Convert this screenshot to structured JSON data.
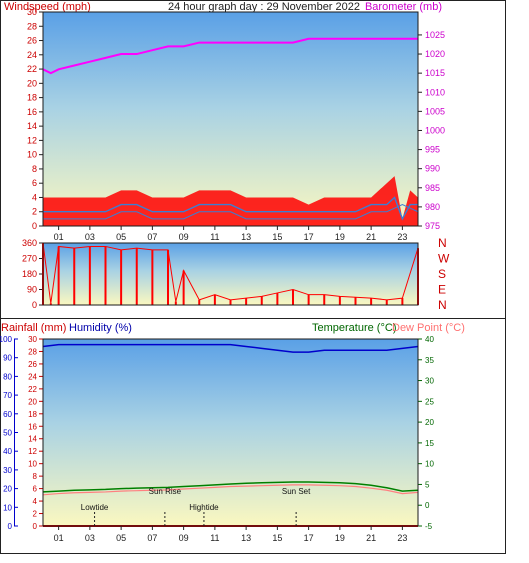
{
  "title": "24 hour graph day : 29 November 2022",
  "colors": {
    "wind": "#ff0000",
    "gust_fill": "#ff0000",
    "avg_wind": "#3a7fd5",
    "barometer": "#ff00ff",
    "direction": "#ff0000",
    "humidity": "#0000cc",
    "temperature": "#008000",
    "dewpoint": "#ff8080",
    "rain": "#cc0000",
    "rain_axis": "#cc0000",
    "humidity_axis": "#0000cc",
    "temp_axis": "#006600",
    "baro_axis": "#cc00cc"
  },
  "chart_data": [
    {
      "type": "line",
      "title": "",
      "ylabel": "Windspeed (mph)",
      "y2label": "Barometer (mb)",
      "ylim": [
        0,
        30
      ],
      "y_ticks": [
        0,
        2,
        4,
        6,
        8,
        10,
        12,
        14,
        16,
        18,
        20,
        22,
        24,
        26,
        28,
        30
      ],
      "y_tick_labels": [
        "0",
        "2",
        "4",
        "6",
        "8",
        "10",
        "12",
        "14",
        "16",
        "18",
        "20",
        "22",
        "24",
        "26",
        "28",
        "30"
      ],
      "y_tick_labels_mph_scale": [
        "0",
        "2",
        "4",
        "6",
        "8",
        "10",
        "12",
        "14",
        "16",
        "18",
        "20",
        "22",
        "24",
        "26",
        "28",
        "30"
      ],
      "y2lim": [
        975,
        1031
      ],
      "y2_ticks": [
        975,
        980,
        985,
        990,
        995,
        1000,
        1005,
        1010,
        1015,
        1020,
        1025
      ],
      "x_tick_labels": [
        "01",
        "03",
        "05",
        "07",
        "09",
        "11",
        "13",
        "15",
        "17",
        "19",
        "21",
        "23"
      ],
      "x_ticks_hour": [
        1,
        3,
        5,
        7,
        9,
        11,
        13,
        15,
        17,
        19,
        21,
        23
      ],
      "xlim": [
        0,
        24
      ],
      "series": [
        {
          "x": [
            0,
            1,
            2,
            3,
            4,
            5,
            6,
            7,
            8,
            9,
            10,
            11,
            12,
            13,
            14,
            15,
            16,
            17,
            18,
            19,
            20,
            21,
            22,
            22.5,
            23,
            23.5,
            24
          ],
          "values": [
            4,
            4,
            4,
            4,
            4,
            5,
            5,
            4,
            4,
            4,
            5,
            5,
            5,
            4,
            4,
            4,
            4,
            3,
            4,
            4,
            4,
            4,
            6,
            7,
            1,
            5,
            4
          ]
        },
        {
          "x": [
            0,
            1,
            2,
            3,
            4,
            5,
            6,
            7,
            8,
            9,
            10,
            11,
            12,
            13,
            14,
            15,
            16,
            17,
            18,
            19,
            20,
            21,
            22,
            22.5,
            23,
            23.5,
            24
          ],
          "values": [
            2,
            2,
            2,
            2,
            2,
            3,
            3,
            2,
            2,
            2,
            3,
            3,
            3,
            2,
            2,
            2,
            2,
            2,
            2,
            2,
            2,
            3,
            3,
            4,
            1,
            3,
            3
          ]
        },
        {
          "x": [
            0,
            1,
            2,
            3,
            4,
            5,
            6,
            7,
            8,
            9,
            10,
            11,
            12,
            13,
            14,
            15,
            16,
            17,
            18,
            19,
            20,
            21,
            22,
            23,
            24
          ],
          "values": [
            1,
            1,
            1,
            1,
            1,
            2,
            2,
            1,
            1,
            1,
            2,
            2,
            2,
            1,
            1,
            1,
            1,
            1,
            1,
            1,
            1,
            2,
            2,
            3,
            2
          ]
        },
        {
          "x": [
            0,
            0.5,
            1,
            2,
            3,
            4,
            5,
            6,
            7,
            8,
            9,
            10,
            11,
            12,
            13,
            14,
            15,
            16,
            17,
            18,
            19,
            20,
            21,
            22,
            23,
            24
          ],
          "values": [
            1016,
            1015,
            1016,
            1017,
            1018,
            1019,
            1020,
            1020,
            1021,
            1022,
            1022,
            1023,
            1023,
            1023,
            1023,
            1023,
            1023,
            1023,
            1024,
            1024,
            1024,
            1024,
            1024,
            1024,
            1024,
            1024
          ]
        }
      ]
    },
    {
      "type": "line",
      "ylim": [
        0,
        360
      ],
      "y_ticks": [
        0,
        90,
        180,
        270,
        360
      ],
      "compass_labels": [
        "N",
        "W",
        "S",
        "E",
        "N"
      ],
      "x": [
        0,
        0.5,
        1,
        2,
        3,
        4,
        5,
        6,
        7,
        8,
        8.5,
        9,
        10,
        11,
        12,
        13,
        14,
        15,
        16,
        17,
        18,
        19,
        20,
        21,
        22,
        23,
        24
      ],
      "values": [
        360,
        10,
        340,
        330,
        340,
        340,
        320,
        330,
        320,
        320,
        20,
        200,
        30,
        60,
        30,
        40,
        50,
        70,
        90,
        60,
        60,
        50,
        45,
        40,
        30,
        40,
        330
      ]
    },
    {
      "type": "line",
      "ylabel_rain": "Rainfall (mm)",
      "ylabel_humidity": "Humidity (%)",
      "y2label_temp": "Temperature (°C)",
      "y2label_dew": "Dew Point (°C)",
      "rain_ylim": [
        0,
        30
      ],
      "rain_ticks": [
        0,
        2,
        4,
        6,
        8,
        10,
        12,
        14,
        16,
        18,
        20,
        22,
        24,
        26,
        28,
        30
      ],
      "humidity_ylim": [
        0,
        100
      ],
      "humidity_ticks": [
        0,
        10,
        20,
        30,
        40,
        50,
        60,
        70,
        80,
        90,
        100
      ],
      "temp_ylim": [
        -5,
        40
      ],
      "temp_ticks": [
        -5,
        0,
        5,
        10,
        15,
        20,
        25,
        30,
        35,
        40
      ],
      "x_tick_labels": [
        "01",
        "03",
        "05",
        "07",
        "09",
        "11",
        "13",
        "15",
        "17",
        "19",
        "21",
        "23"
      ],
      "events": [
        {
          "label": "Lowtide",
          "hour": 3.3
        },
        {
          "label": "Sun Rise",
          "hour": 7.8
        },
        {
          "label": "Hightide",
          "hour": 10.3
        },
        {
          "label": "Sun Set",
          "hour": 16.2
        }
      ],
      "series": [
        {
          "name": "Humidity",
          "x": [
            0,
            1,
            2,
            3,
            4,
            5,
            6,
            7,
            8,
            9,
            10,
            11,
            12,
            13,
            14,
            15,
            16,
            17,
            18,
            19,
            20,
            21,
            22,
            23,
            24
          ],
          "values": [
            96,
            97,
            97,
            97,
            97,
            97,
            97,
            97,
            97,
            97,
            97,
            97,
            97,
            96,
            95,
            94,
            93,
            93,
            94,
            94,
            94,
            94,
            94,
            95,
            96
          ]
        },
        {
          "name": "Temperature",
          "x": [
            0,
            1,
            2,
            3,
            4,
            5,
            6,
            7,
            8,
            9,
            10,
            11,
            12,
            13,
            14,
            15,
            16,
            17,
            18,
            19,
            20,
            21,
            22,
            23,
            24
          ],
          "values": [
            3.2,
            3.4,
            3.6,
            3.7,
            3.8,
            4.0,
            4.1,
            4.2,
            4.3,
            4.5,
            4.7,
            4.9,
            5.1,
            5.3,
            5.4,
            5.5,
            5.6,
            5.6,
            5.5,
            5.4,
            5.2,
            4.8,
            4.2,
            3.4,
            3.6
          ]
        },
        {
          "name": "Dew Point",
          "x": [
            0,
            1,
            2,
            3,
            4,
            5,
            6,
            7,
            8,
            9,
            10,
            11,
            12,
            13,
            14,
            15,
            16,
            17,
            18,
            19,
            20,
            21,
            22,
            23,
            24
          ],
          "values": [
            2.5,
            2.8,
            3.0,
            3.1,
            3.2,
            3.4,
            3.5,
            3.6,
            3.7,
            3.9,
            4.1,
            4.3,
            4.5,
            4.6,
            4.7,
            4.8,
            4.9,
            4.9,
            4.8,
            4.7,
            4.5,
            4.1,
            3.6,
            2.8,
            3.1
          ]
        },
        {
          "name": "Rain",
          "x": [
            0,
            24
          ],
          "values": [
            0,
            0
          ]
        }
      ]
    }
  ]
}
